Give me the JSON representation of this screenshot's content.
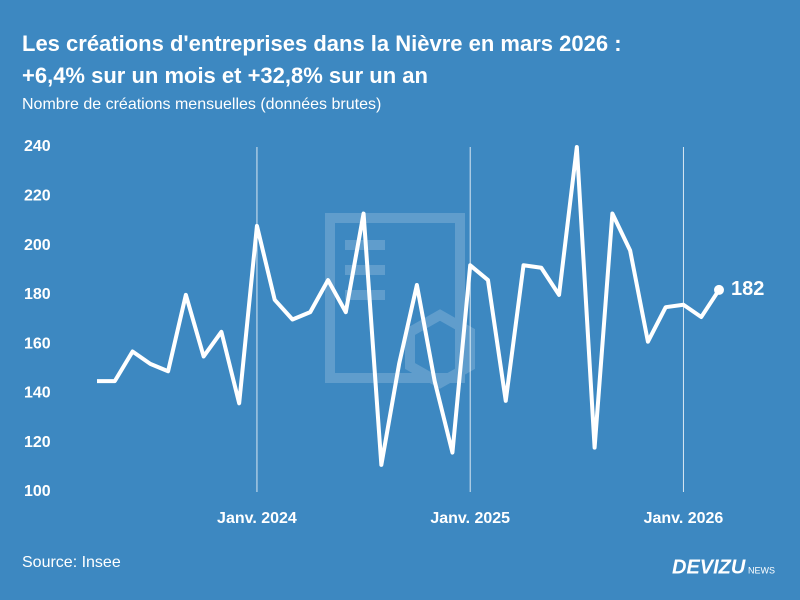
{
  "chart_data": {
    "type": "line",
    "title": "Les créations d'entreprises dans la Nièvre en mars 2026 :",
    "title_line2": "+6,4% sur un mois et +32,8% sur un an",
    "subtitle": "Nombre de créations mensuelles (données brutes)",
    "source": "Source: Insee",
    "brand": "DEVIZU",
    "brand_suffix": "NEWS",
    "categories": [
      null,
      null,
      null,
      null,
      null,
      null,
      null,
      null,
      null,
      "Janv. 2024",
      null,
      null,
      null,
      null,
      null,
      null,
      null,
      null,
      null,
      null,
      null,
      "Janv. 2025",
      null,
      null,
      null,
      null,
      null,
      null,
      null,
      null,
      null,
      null,
      null,
      "Janv. 2026",
      null,
      null
    ],
    "series": [
      {
        "color": "#ffffff",
        "values": [
          145,
          145,
          157,
          152,
          149,
          180,
          155,
          165,
          136,
          208,
          178,
          170,
          173,
          186,
          173,
          213,
          111,
          152,
          184,
          145,
          116,
          192,
          186,
          137,
          192,
          191,
          180,
          240,
          118,
          213,
          198,
          161,
          175,
          176,
          171,
          182
        ]
      }
    ],
    "ylim": [
      100,
      240
    ],
    "yticks": [
      100,
      120,
      140,
      160,
      180,
      200,
      220,
      240
    ],
    "vertical_grid_at_labels": true
  }
}
